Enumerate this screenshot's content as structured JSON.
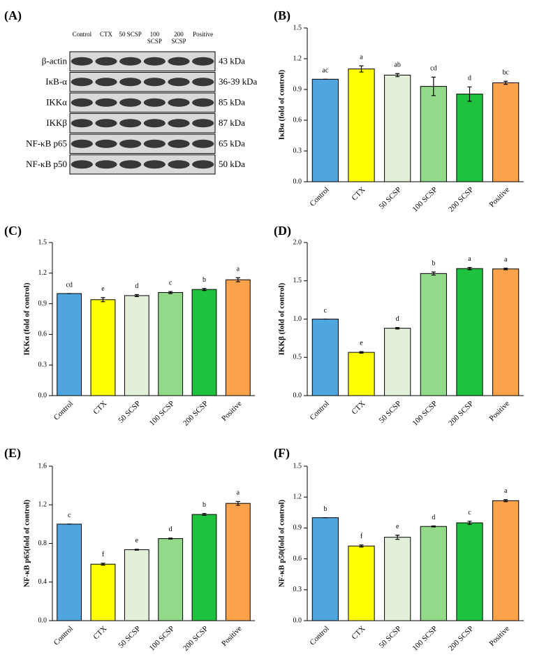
{
  "blot": {
    "panel": "(A)",
    "lanes": [
      "Control",
      "CTX",
      "50 SCSP",
      "100 SCSP",
      "200 SCSP",
      "Positive"
    ],
    "proteins": [
      "β-actin",
      "IκB-α",
      "IKKα",
      "IKKβ",
      "NF-κB p65",
      "NF-κB p50"
    ],
    "sizes": [
      "43 kDa",
      "36-39 kDa",
      "85 kDa",
      "87 kDa",
      "65 kDa",
      "50 kDa"
    ]
  },
  "chart_data": [
    {
      "type": "bar",
      "panel": "(B)",
      "ylabel": "IκBα (fold of control)",
      "categories": [
        "Control",
        "CTX",
        "50 SCSP",
        "100 SCSP",
        "200 SCSP",
        "Positive"
      ],
      "values": [
        1.0,
        1.1,
        1.04,
        0.93,
        0.855,
        0.965
      ],
      "errors": [
        0,
        0.03,
        0.015,
        0.09,
        0.07,
        0.015
      ],
      "annotations": [
        "ac",
        "a",
        "ab",
        "cd",
        "d",
        "bc"
      ],
      "colors": [
        "#4fa6df",
        "#ffff00",
        "#e2f0d9",
        "#92d98a",
        "#1fc23e",
        "#fba24b"
      ],
      "ylim": [
        0,
        1.5
      ],
      "yticks": [
        {
          "value": 0,
          "label": "0.0"
        },
        0.3,
        0.6,
        0.9,
        1.2,
        1.5
      ]
    },
    {
      "type": "bar",
      "panel": "(C)",
      "ylabel": "IKKα (fold of control)",
      "categories": [
        "Control",
        "CTX",
        "50 SCSP",
        "100 SCSP",
        "200 SCSP",
        "Positive"
      ],
      "values": [
        1.0,
        0.94,
        0.98,
        1.01,
        1.04,
        1.135
      ],
      "errors": [
        0,
        0.02,
        0.01,
        0.01,
        0.01,
        0.02
      ],
      "annotations": [
        "cd",
        "e",
        "d",
        "c",
        "b",
        "a"
      ],
      "colors": [
        "#4fa6df",
        "#ffff00",
        "#e2f0d9",
        "#92d98a",
        "#1fc23e",
        "#fba24b"
      ],
      "ylim": [
        0,
        1.5
      ],
      "yticks": [
        {
          "value": 0,
          "label": "0.0"
        },
        0.3,
        0.6,
        0.9,
        1.2,
        1.5
      ]
    },
    {
      "type": "bar",
      "panel": "(D)",
      "ylabel": "IKKβ (fold of control)",
      "categories": [
        "Control",
        "CTX",
        "50 SCSP",
        "100 SCSP",
        "200 SCSP",
        "Positive"
      ],
      "values": [
        1.0,
        0.565,
        0.88,
        1.595,
        1.66,
        1.655
      ],
      "errors": [
        0,
        0.01,
        0.01,
        0.02,
        0.015,
        0.01
      ],
      "annotations": [
        "c",
        "e",
        "d",
        "b",
        "a",
        "a"
      ],
      "colors": [
        "#4fa6df",
        "#ffff00",
        "#e2f0d9",
        "#92d98a",
        "#1fc23e",
        "#fba24b"
      ],
      "ylim": [
        0,
        2.0
      ],
      "yticks": [
        {
          "value": 0,
          "label": "0.0"
        },
        0.5,
        {
          "value": 1,
          "label": "1.0"
        },
        1.5,
        {
          "value": 2,
          "label": "2.0"
        }
      ]
    },
    {
      "type": "bar",
      "panel": "(E)",
      "ylabel": "NF-κB p65(fold of control)",
      "categories": [
        "Control",
        "CTX",
        "50 SCSP",
        "100 SCSP",
        "200 SCSP",
        "Positive"
      ],
      "values": [
        1.0,
        0.585,
        0.735,
        0.85,
        1.1,
        1.215
      ],
      "errors": [
        0,
        0.01,
        0.005,
        0.005,
        0.01,
        0.02
      ],
      "annotations": [
        "c",
        "f",
        "e",
        "d",
        "b",
        "a"
      ],
      "colors": [
        "#4fa6df",
        "#ffff00",
        "#e2f0d9",
        "#92d98a",
        "#1fc23e",
        "#fba24b"
      ],
      "ylim": [
        0,
        1.6
      ],
      "yticks": [
        {
          "value": 0,
          "label": "0.0"
        },
        0.4,
        0.8,
        1.2,
        1.6
      ]
    },
    {
      "type": "bar",
      "panel": "(F)",
      "ylabel": "NF-κB p50(fold of control)",
      "categories": [
        "Control",
        "CTX",
        "50 SCSP",
        "100 SCSP",
        "200 SCSP",
        "Positive"
      ],
      "values": [
        1.0,
        0.725,
        0.81,
        0.915,
        0.95,
        1.165
      ],
      "errors": [
        0,
        0.01,
        0.02,
        0.005,
        0.015,
        0.01
      ],
      "annotations": [
        "b",
        "f",
        "e",
        "d",
        "c",
        "a"
      ],
      "colors": [
        "#4fa6df",
        "#ffff00",
        "#e2f0d9",
        "#92d98a",
        "#1fc23e",
        "#fba24b"
      ],
      "ylim": [
        0,
        1.5
      ],
      "yticks": [
        {
          "value": 0,
          "label": "0.0"
        },
        0.3,
        0.6,
        0.9,
        1.2,
        1.5
      ]
    }
  ]
}
